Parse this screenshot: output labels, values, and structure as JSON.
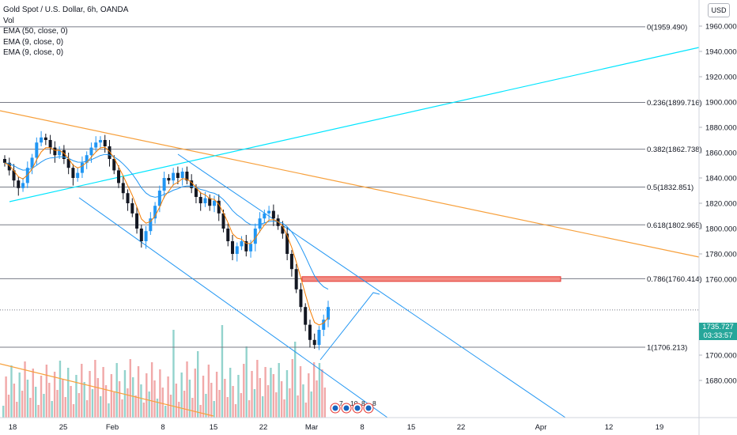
{
  "legend": {
    "title": "Gold Spot / U.S. Dollar, 6h, OANDA",
    "vol": "Vol",
    "ema1": "EMA (50, close, 0)",
    "ema2": "EMA (9, close, 0)",
    "ema3": "EMA (9, close, 0)"
  },
  "currency_button": "USD",
  "last_price": {
    "value": "1735.727",
    "countdown": "03:33:57",
    "color": "#26a69a"
  },
  "colors": {
    "up": "#2196f3",
    "down": "#131722",
    "fib": "#787b86",
    "channel": "#2196f3",
    "cyan_line": "#00e5ff",
    "orange_line": "#f7a03c",
    "ema_fast": "#f57c00",
    "ema_slow": "#2196f3",
    "zone": "#f28b82",
    "vol_up": "#80cbc4",
    "vol_down": "#ef9a9a"
  },
  "events": [
    "7",
    "10",
    "8",
    "8"
  ],
  "chart_data": {
    "type": "candlestick",
    "y_axis_ticks": [
      "1960.000",
      "1940.000",
      "1920.000",
      "1900.000",
      "1880.000",
      "1860.000",
      "1840.000",
      "1820.000",
      "1800.000",
      "1780.000",
      "1760.000",
      "1740.000",
      "1720.000",
      "1700.000",
      "1680.000"
    ],
    "x_axis_ticks": [
      "18",
      "25",
      "Feb",
      "8",
      "15",
      "22",
      "Mar",
      "8",
      "15",
      "22",
      "Apr",
      "12",
      "19"
    ],
    "ylim": [
      1664,
      1968
    ],
    "fib_levels": [
      {
        "label": "0(1959.490)",
        "price": 1959.49
      },
      {
        "label": "0.236(1899.716)",
        "price": 1899.716
      },
      {
        "label": "0.382(1862.738)",
        "price": 1862.738
      },
      {
        "label": "0.5(1832.851)",
        "price": 1832.851
      },
      {
        "label": "0.618(1802.965)",
        "price": 1802.965
      },
      {
        "label": "0.786(1760.414)",
        "price": 1760.414
      },
      {
        "label": "1(1706.213)",
        "price": 1706.213
      }
    ],
    "price_path": [
      1852,
      1846,
      1838,
      1832,
      1836,
      1848,
      1856,
      1868,
      1872,
      1870,
      1864,
      1858,
      1862,
      1855,
      1848,
      1840,
      1844,
      1852,
      1858,
      1864,
      1868,
      1870,
      1865,
      1855,
      1846,
      1836,
      1828,
      1820,
      1812,
      1800,
      1790,
      1798,
      1808,
      1818,
      1830,
      1840,
      1838,
      1844,
      1840,
      1845,
      1838,
      1832,
      1825,
      1820,
      1824,
      1818,
      1822,
      1812,
      1800,
      1790,
      1780,
      1786,
      1790,
      1782,
      1788,
      1800,
      1808,
      1812,
      1814,
      1808,
      1802,
      1796,
      1780,
      1768,
      1752,
      1738,
      1724,
      1712,
      1708,
      1720,
      1728,
      1738
    ]
  }
}
